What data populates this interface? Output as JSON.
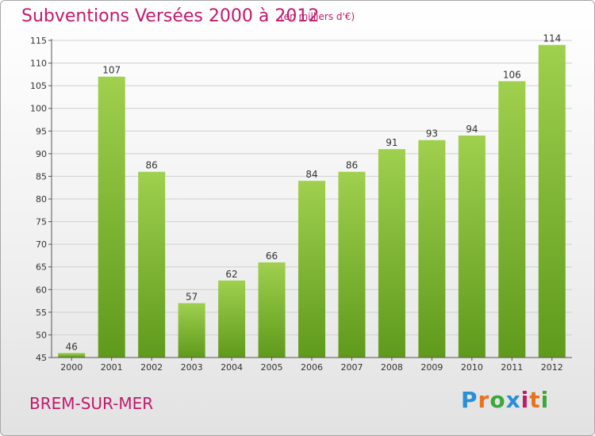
{
  "header": {
    "title": "Subventions Versées 2000 à 2012",
    "subtitle": "(en milliers d'€)"
  },
  "footer": {
    "commune": "BREM-SUR-MER",
    "brand": "Proxiti",
    "brand_colors": [
      "#2a8fd6",
      "#e8731a",
      "#3aa83a",
      "#2a8fd6",
      "#c1196e",
      "#e8731a",
      "#3aa83a"
    ]
  },
  "colors": {
    "accent": "#c1196e",
    "bar_top": "#9fd04e",
    "bar_bottom": "#5f9a1c",
    "grid": "#cfcfcf",
    "axis_text": "#333333"
  },
  "chart_data": {
    "type": "bar",
    "title": "Subventions Versées 2000 à 2012",
    "subtitle": "(en milliers d'€)",
    "categories": [
      "2000",
      "2001",
      "2002",
      "2003",
      "2004",
      "2005",
      "2006",
      "2007",
      "2008",
      "2009",
      "2010",
      "2011",
      "2012"
    ],
    "values": [
      46,
      107,
      86,
      57,
      62,
      66,
      84,
      86,
      91,
      93,
      94,
      106,
      114
    ],
    "ylim": [
      45,
      115
    ],
    "yticks": [
      45,
      50,
      55,
      60,
      65,
      70,
      75,
      80,
      85,
      90,
      95,
      100,
      105,
      110,
      115
    ],
    "grid": true,
    "data_labels": true
  }
}
